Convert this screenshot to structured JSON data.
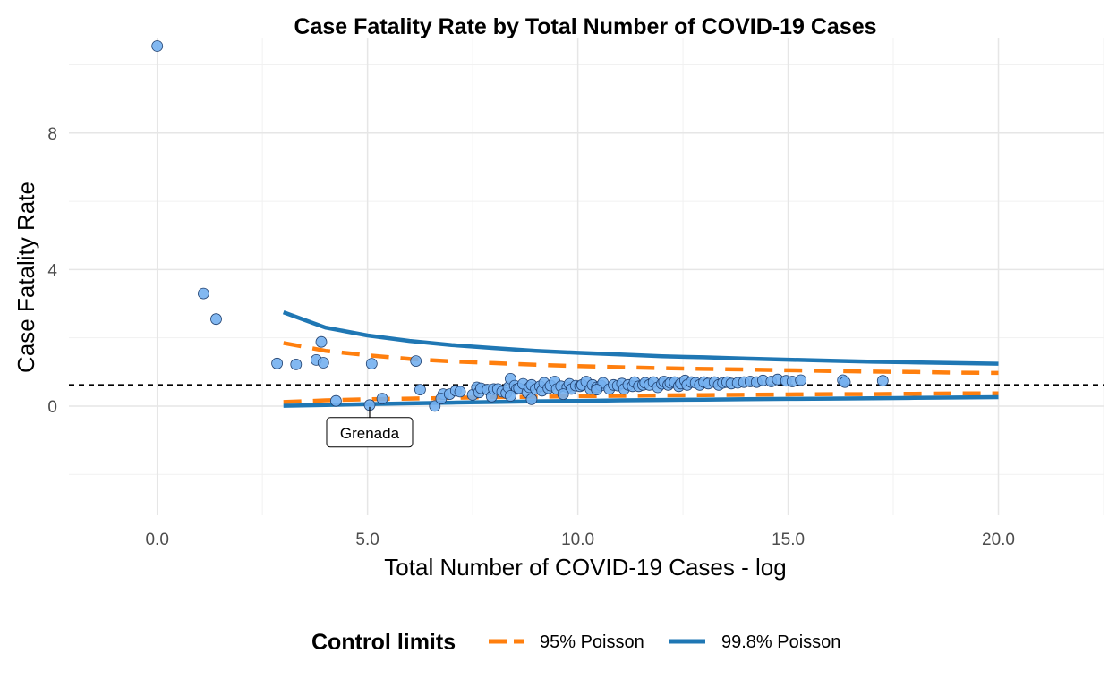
{
  "chart_data": {
    "type": "scatter",
    "title": "Case Fatality Rate by Total Number of COVID-19 Cases",
    "xlabel": "Total Number of COVID-19 Cases - log",
    "ylabel": "Case Fatality Rate",
    "xlim": [
      -2.1,
      22.5
    ],
    "ylim": [
      -3.2,
      10.8
    ],
    "x_ticks": [
      0,
      5,
      10,
      15,
      20
    ],
    "x_tick_labels": [
      "0.0",
      "5.0",
      "10.0",
      "15.0",
      "20.0"
    ],
    "y_ticks": [
      0,
      4,
      8
    ],
    "y_tick_labels": [
      "0",
      "4",
      "8"
    ],
    "grid": true,
    "reference_line": {
      "y": 0.62,
      "style": "dashed",
      "color": "#000000"
    },
    "legend": {
      "title": "Control limits",
      "position": "bottom",
      "items": [
        {
          "label": "95% Poisson",
          "color": "#ff7f0e",
          "style": "dashed"
        },
        {
          "label": "99.8% Poisson",
          "color": "#1f77b4",
          "style": "solid"
        }
      ]
    },
    "series": [
      {
        "name": "95% Poisson",
        "kind": "line",
        "color": "#ff7f0e",
        "dash": "dashed",
        "upper": {
          "x": [
            3,
            4,
            5,
            6,
            7,
            8,
            9,
            10,
            11,
            12,
            13,
            14,
            15,
            16,
            17,
            18,
            19,
            20
          ],
          "y": [
            1.85,
            1.62,
            1.49,
            1.38,
            1.31,
            1.26,
            1.21,
            1.17,
            1.14,
            1.11,
            1.09,
            1.07,
            1.05,
            1.03,
            1.01,
            1.0,
            0.98,
            0.97
          ]
        },
        "lower": {
          "x": [
            3,
            4,
            5,
            6,
            7,
            8,
            9,
            10,
            11,
            12,
            13,
            14,
            15,
            16,
            17,
            18,
            19,
            20
          ],
          "y": [
            0.12,
            0.17,
            0.2,
            0.22,
            0.24,
            0.26,
            0.27,
            0.29,
            0.3,
            0.31,
            0.32,
            0.33,
            0.34,
            0.35,
            0.35,
            0.36,
            0.37,
            0.37
          ]
        }
      },
      {
        "name": "99.8% Poisson",
        "kind": "line",
        "color": "#1f77b4",
        "dash": "solid",
        "upper": {
          "x": [
            3,
            4,
            5,
            6,
            7,
            8,
            9,
            10,
            11,
            12,
            13,
            14,
            15,
            16,
            17,
            18,
            19,
            20
          ],
          "y": [
            2.75,
            2.3,
            2.07,
            1.91,
            1.79,
            1.7,
            1.62,
            1.56,
            1.51,
            1.46,
            1.43,
            1.39,
            1.36,
            1.33,
            1.3,
            1.28,
            1.26,
            1.24
          ]
        },
        "lower": {
          "x": [
            3,
            4,
            5,
            6,
            7,
            8,
            9,
            10,
            11,
            12,
            13,
            14,
            15,
            16,
            17,
            18,
            19,
            20
          ],
          "y": [
            0.01,
            0.03,
            0.06,
            0.08,
            0.1,
            0.12,
            0.14,
            0.15,
            0.17,
            0.18,
            0.19,
            0.2,
            0.21,
            0.22,
            0.23,
            0.24,
            0.25,
            0.26
          ]
        }
      },
      {
        "name": "",
        "kind": "points",
        "color": "#74b0f0",
        "x": [
          0.0,
          1.1,
          1.4,
          2.85,
          3.3,
          3.78,
          3.9,
          4.25,
          5.1,
          6.15,
          6.25,
          3.95,
          5.05,
          5.35,
          6.6,
          6.8,
          6.75,
          6.95,
          7.1,
          7.2,
          7.5,
          7.6,
          7.65,
          7.7,
          7.85,
          7.95,
          8.0,
          8.1,
          8.2,
          8.3,
          8.35,
          8.4,
          8.5,
          8.55,
          8.6,
          8.7,
          8.8,
          8.85,
          8.9,
          9.0,
          9.1,
          9.15,
          9.2,
          9.3,
          9.35,
          9.45,
          9.5,
          9.6,
          9.75,
          9.8,
          9.85,
          9.95,
          10.05,
          10.1,
          10.2,
          10.3,
          10.35,
          10.45,
          10.55,
          10.6,
          10.75,
          10.85,
          10.95,
          11.05,
          11.1,
          11.2,
          11.3,
          11.35,
          11.45,
          11.55,
          11.6,
          11.7,
          11.8,
          11.9,
          12.0,
          12.05,
          12.15,
          12.2,
          12.3,
          12.4,
          12.45,
          12.55,
          12.6,
          12.7,
          12.8,
          12.9,
          13.0,
          13.1,
          13.25,
          13.35,
          13.45,
          13.55,
          13.65,
          13.8,
          13.95,
          14.1,
          14.25,
          14.4,
          14.6,
          14.75,
          14.95,
          15.1,
          15.3,
          16.3,
          16.35,
          17.25,
          8.9,
          8.4,
          9.65,
          10.45
        ],
        "y": [
          10.55,
          3.3,
          2.55,
          1.25,
          1.22,
          1.35,
          1.88,
          0.15,
          1.24,
          1.32,
          0.48,
          1.27,
          0.03,
          0.22,
          0.0,
          0.35,
          0.22,
          0.35,
          0.45,
          0.42,
          0.33,
          0.55,
          0.4,
          0.52,
          0.48,
          0.28,
          0.5,
          0.5,
          0.42,
          0.38,
          0.55,
          0.8,
          0.6,
          0.5,
          0.52,
          0.65,
          0.4,
          0.55,
          0.62,
          0.5,
          0.58,
          0.45,
          0.68,
          0.52,
          0.6,
          0.72,
          0.5,
          0.58,
          0.55,
          0.65,
          0.5,
          0.6,
          0.58,
          0.62,
          0.72,
          0.5,
          0.62,
          0.55,
          0.6,
          0.68,
          0.5,
          0.62,
          0.6,
          0.66,
          0.5,
          0.62,
          0.58,
          0.7,
          0.58,
          0.62,
          0.68,
          0.62,
          0.7,
          0.55,
          0.65,
          0.72,
          0.62,
          0.68,
          0.7,
          0.58,
          0.66,
          0.75,
          0.62,
          0.7,
          0.68,
          0.62,
          0.7,
          0.66,
          0.7,
          0.62,
          0.68,
          0.7,
          0.66,
          0.68,
          0.7,
          0.72,
          0.7,
          0.75,
          0.72,
          0.78,
          0.74,
          0.72,
          0.76,
          0.76,
          0.7,
          0.74,
          0.2,
          0.3,
          0.35,
          0.48
        ]
      }
    ],
    "annotations": [
      {
        "text": "Grenada",
        "x": 5.05,
        "y": 0.03
      }
    ]
  }
}
